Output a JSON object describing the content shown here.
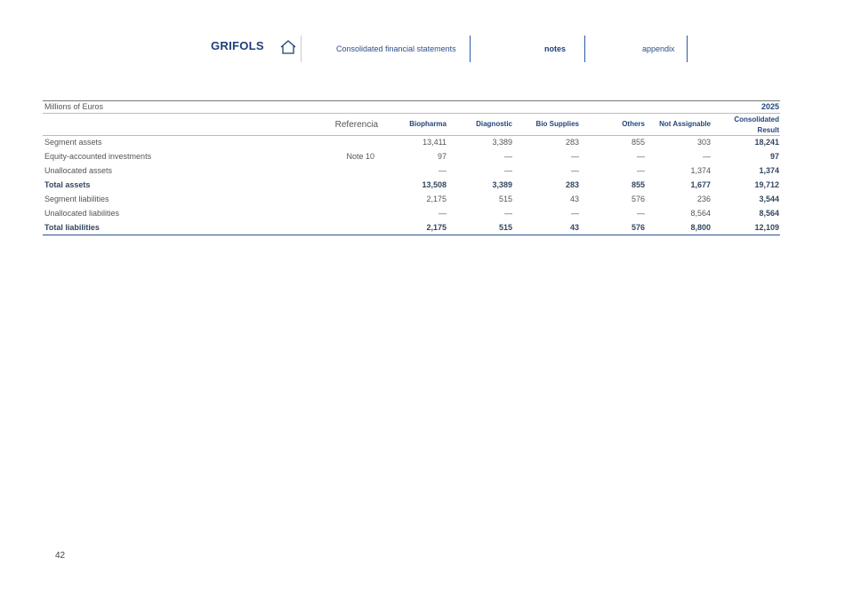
{
  "header": {
    "logo": "GRIFOLS",
    "nav": [
      "Consolidated financial statements",
      "notes",
      "appendix"
    ]
  },
  "table": {
    "unit": "Millions of Euros",
    "year": "2025",
    "ref_header": "Referencia",
    "columns": [
      "Biopharma",
      "Diagnostic",
      "Bio Supplies",
      "Others",
      "Not Assignable",
      "Consolidated Result"
    ],
    "rows": [
      {
        "label": "Segment assets",
        "values": [
          "13,411",
          "3,389",
          "283",
          "855",
          "303",
          "18,241"
        ]
      },
      {
        "label": "Equity-accounted investments",
        "ref": "Note 10",
        "values": [
          "97",
          "—",
          "—",
          "—",
          "—",
          "97"
        ]
      },
      {
        "label": "Unallocated assets",
        "values": [
          "—",
          "—",
          "—",
          "—",
          "1,374",
          "1,374"
        ]
      },
      {
        "label": "Total assets",
        "total": true,
        "values": [
          "13,508",
          "3,389",
          "283",
          "855",
          "1,677",
          "19,712"
        ]
      },
      {
        "label": "Segment liabilities",
        "values": [
          "2,175",
          "515",
          "43",
          "576",
          "236",
          "3,544"
        ]
      },
      {
        "label": "Unallocated liabilities",
        "values": [
          "—",
          "—",
          "—",
          "—",
          "8,564",
          "8,564"
        ]
      },
      {
        "label": "Total liabilities",
        "total": true,
        "values": [
          "2,175",
          "515",
          "43",
          "576",
          "8,800",
          "12,109"
        ]
      }
    ]
  },
  "footer": {
    "page": "42"
  }
}
